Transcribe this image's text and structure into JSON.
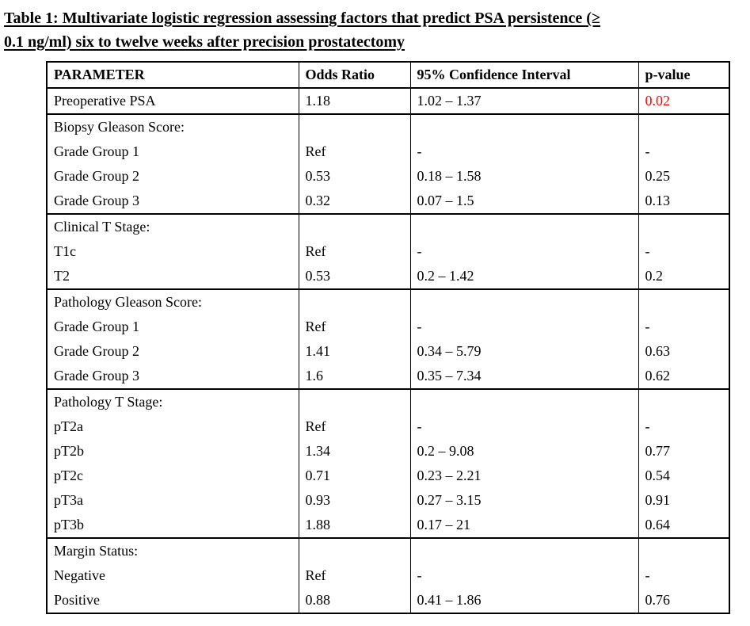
{
  "title": {
    "line1": "Table 1: Multivariate logistic regression assessing factors that predict PSA persistence (≥",
    "line2": "0.1 ng/ml) six to twelve weeks after precision prostatectomy"
  },
  "colors": {
    "significant_p_value": "#FF0000",
    "text": "#000000",
    "border": "#000000",
    "background": "#FFFFFF"
  },
  "table": {
    "headers": [
      "PARAMETER",
      "Odds Ratio",
      "95% Confidence Interval",
      "p-value"
    ],
    "rows": [
      {
        "parameter": "Preoperative PSA",
        "odds_ratio": "1.18",
        "ci": "1.02 – 1.37",
        "p_value": "0.02",
        "p_red": true,
        "section_start": true
      },
      {
        "parameter": "Biopsy Gleason Score:",
        "odds_ratio": "",
        "ci": "",
        "p_value": "",
        "section_start": true
      },
      {
        "parameter": "Grade Group 1",
        "odds_ratio": "Ref",
        "ci": "-",
        "p_value": "-"
      },
      {
        "parameter": "Grade Group 2",
        "odds_ratio": "0.53",
        "ci": "0.18 – 1.58",
        "p_value": "0.25"
      },
      {
        "parameter": "Grade Group 3",
        "odds_ratio": "0.32",
        "ci": "0.07 – 1.5",
        "p_value": "0.13"
      },
      {
        "parameter": "Clinical T Stage:",
        "odds_ratio": "",
        "ci": "",
        "p_value": "",
        "section_start": true
      },
      {
        "parameter": "T1c",
        "odds_ratio": "Ref",
        "ci": "-",
        "p_value": "-"
      },
      {
        "parameter": "T2",
        "odds_ratio": "0.53",
        "ci": "0.2 – 1.42",
        "p_value": "0.2"
      },
      {
        "parameter": "Pathology Gleason Score:",
        "odds_ratio": "",
        "ci": "",
        "p_value": "",
        "section_start": true
      },
      {
        "parameter": "Grade Group 1",
        "odds_ratio": "Ref",
        "ci": "-",
        "p_value": "-"
      },
      {
        "parameter": "Grade Group 2",
        "odds_ratio": "1.41",
        "ci": "0.34 – 5.79",
        "p_value": "0.63"
      },
      {
        "parameter": "Grade Group 3",
        "odds_ratio": "1.6",
        "ci": "0.35 – 7.34",
        "p_value": "0.62"
      },
      {
        "parameter": "Pathology T Stage:",
        "odds_ratio": "",
        "ci": "",
        "p_value": "",
        "section_start": true
      },
      {
        "parameter": "pT2a",
        "odds_ratio": "Ref",
        "ci": "-",
        "p_value": "-"
      },
      {
        "parameter": "pT2b",
        "odds_ratio": "1.34",
        "ci": "0.2 – 9.08",
        "p_value": "0.77"
      },
      {
        "parameter": "pT2c",
        "odds_ratio": "0.71",
        "ci": "0.23 – 2.21",
        "p_value": "0.54"
      },
      {
        "parameter": "pT3a",
        "odds_ratio": "0.93",
        "ci": "0.27 – 3.15",
        "p_value": "0.91"
      },
      {
        "parameter": "pT3b",
        "odds_ratio": "1.88",
        "ci": "0.17 – 21",
        "p_value": "0.64"
      },
      {
        "parameter": "Margin Status:",
        "odds_ratio": "",
        "ci": "",
        "p_value": "",
        "section_start": true
      },
      {
        "parameter": "Negative",
        "odds_ratio": "Ref",
        "ci": "-",
        "p_value": "-"
      },
      {
        "parameter": "Positive",
        "odds_ratio": "0.88",
        "ci": "0.41 – 1.86",
        "p_value": "0.76"
      }
    ]
  }
}
